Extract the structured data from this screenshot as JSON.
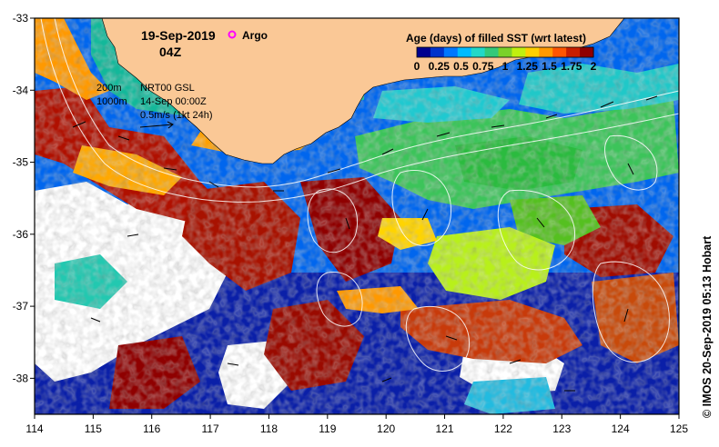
{
  "date": "19-Sep-2019",
  "time": "04Z",
  "argo_label": "Argo",
  "legend": {
    "title": "Age (days) of filled SST (wrt latest)",
    "ticks": [
      "0",
      "0.25",
      "0.5",
      "0.75",
      "1",
      "1.25",
      "1.5",
      "1.75",
      "2"
    ],
    "colors": [
      "#00008f",
      "#0033cc",
      "#0077ff",
      "#00bbff",
      "#22d8c8",
      "#33c97a",
      "#7ad12a",
      "#c0ef10",
      "#ffd000",
      "#ff9900",
      "#ff5500",
      "#c81e00",
      "#8f0000"
    ]
  },
  "contours": {
    "depth_1": "200m",
    "depth_2": "1000m"
  },
  "current_info": {
    "line1": "NRT00 GSL",
    "line2": "14-Sep 00:00Z",
    "line3": "0.5m/s (1kt 24h)"
  },
  "credit": "© IMOS 20-Sep-2019 05:13 Hobart",
  "axes": {
    "lon": [
      114,
      115,
      116,
      117,
      118,
      119,
      120,
      121,
      122,
      123,
      124,
      125
    ],
    "lat": [
      -33,
      -34,
      -35,
      -36,
      -37,
      -38
    ],
    "lon_range": [
      114,
      125
    ],
    "lat_range": [
      -38.5,
      -33
    ]
  },
  "colors": {
    "land": "#fac896",
    "argo": "#ff00ff",
    "frame": "#000000"
  }
}
